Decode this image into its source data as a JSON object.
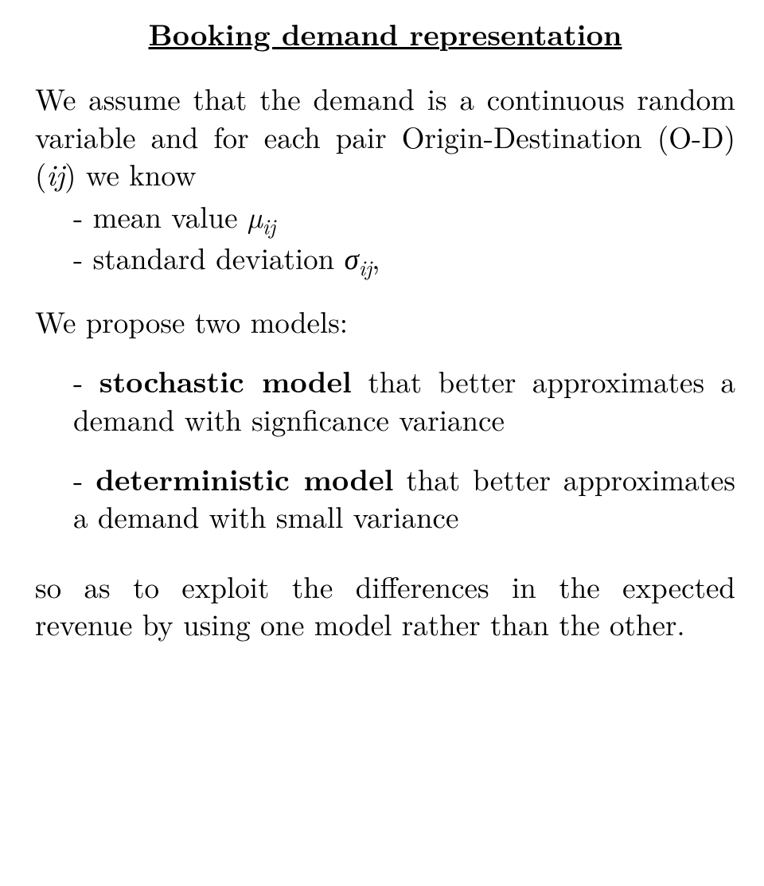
{
  "colors": {
    "text": "#000000",
    "background": "#ffffff"
  },
  "typography": {
    "base_fontsize_pt": 28,
    "title_fontsize_pt": 28,
    "font_family": "CMU Serif / Times-like"
  },
  "title": "Booking demand representation",
  "intro_html": "We assume that the demand is a continuous random variable and for each pair Origin-Destination (O-D) (<span class=\"math-it\">ij</span>) we know",
  "know_items": [
    "- mean value <span class=\"math-it\">µ</span><span class=\"sub\">ij</span>",
    "- standard deviation <span class=\"math-it\">σ</span><span class=\"sub\">ij</span>,"
  ],
  "propose_line": "We propose two models:",
  "models": [
    "- <b>stochastic model</b> that better approx&shy;imates a demand with signficance vari&shy;ance",
    "- <b>deterministic model</b> that better ap&shy;proximates a demand with small vari&shy;ance"
  ],
  "closing_html": "so as to exploit the differences in the ex&shy;pected revenue by using one model rather than the other."
}
